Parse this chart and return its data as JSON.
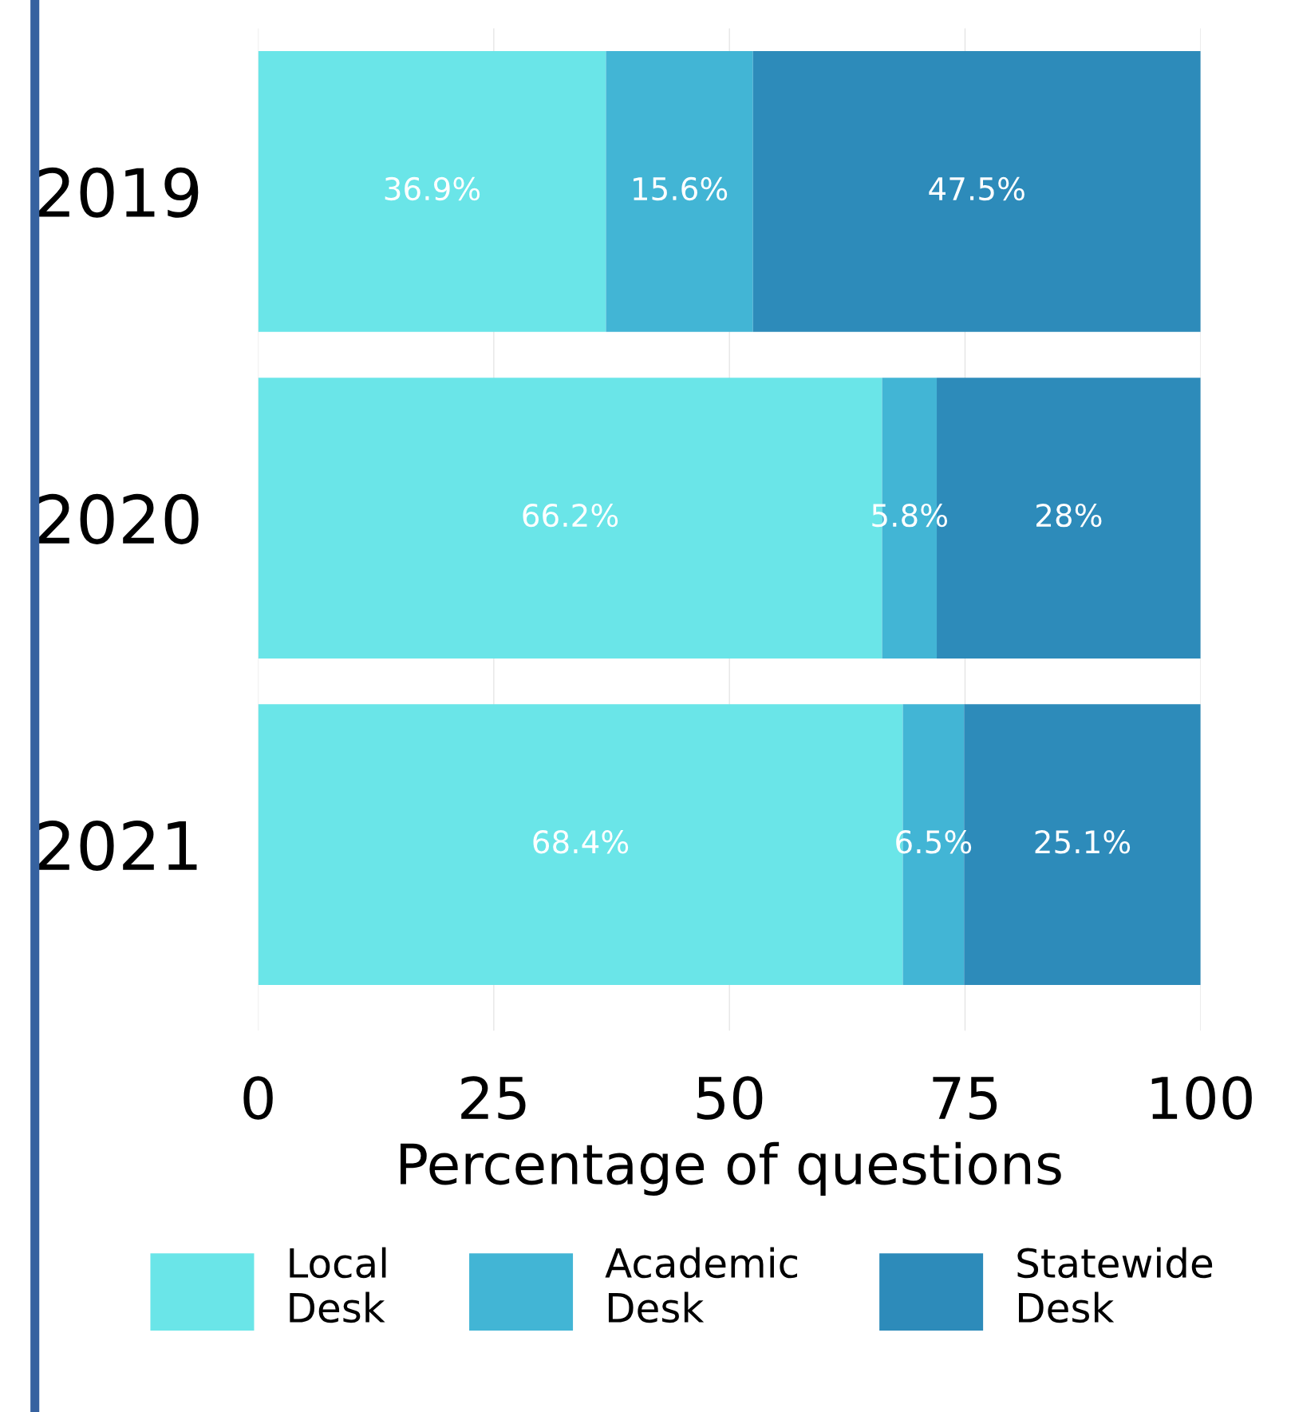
{
  "chart_data": {
    "type": "bar",
    "orientation": "horizontal",
    "stacked": true,
    "categories": [
      "2019",
      "2020",
      "2021"
    ],
    "series": [
      {
        "name": "Local\nDesk",
        "color": "#6ae5e8",
        "values": [
          36.9,
          66.2,
          68.4
        ],
        "value_labels": [
          "36.9%",
          "66.2%",
          "68.4%"
        ]
      },
      {
        "name": "Academic\nDesk",
        "color": "#42b5d5",
        "values": [
          15.6,
          5.8,
          6.5
        ],
        "value_labels": [
          "15.6%",
          "5.8%",
          "6.5%"
        ]
      },
      {
        "name": "Statewide\nDesk",
        "color": "#2d8bba",
        "values": [
          47.5,
          28,
          25.1
        ],
        "value_labels": [
          "47.5%",
          "28%",
          "25.1%"
        ]
      }
    ],
    "xlabel": "Percentage of questions",
    "xlim": [
      0,
      100
    ],
    "xticks": [
      0,
      25,
      50,
      75,
      100
    ],
    "grid": "x",
    "legend": "bottom"
  }
}
